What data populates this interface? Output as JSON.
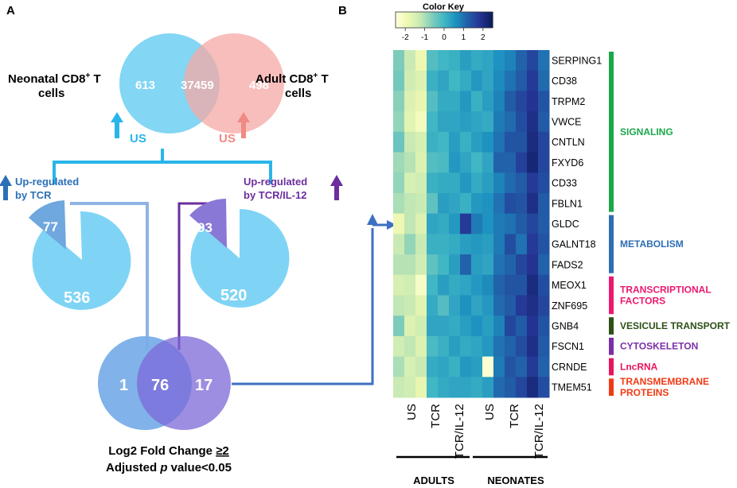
{
  "panel_a": {
    "label": "A",
    "top_venn": {
      "left_label_line1": "Neonatal CD8",
      "left_label_sup": "+",
      "left_label_suffix": " T",
      "left_label_line2": "cells",
      "right_label_line1": "Adult CD8",
      "right_label_sup": "+",
      "right_label_suffix": " T",
      "right_label_line2": "cells",
      "left_only": "613",
      "shared": "37459",
      "right_only": "498",
      "left_condition": "US",
      "right_condition": "US"
    },
    "tcr_branch": {
      "label_line1": "Up-regulated",
      "label_line2": "by TCR",
      "slice": "77",
      "rest": "536"
    },
    "il12_branch": {
      "label_line1": "Up-regulated",
      "label_line2": "by TCR/IL-12",
      "slice": "93",
      "rest": "520"
    },
    "bottom_venn": {
      "left_only": "1",
      "shared": "76",
      "right_only": "17"
    },
    "criteria_line1_prefix": "Log2 Fold Change ",
    "criteria_line1_value": "≥2",
    "criteria_line2_prefix": "Adjusted ",
    "criteria_line2_italic": "p",
    "criteria_line2_suffix": " value<0.05"
  },
  "panel_b": {
    "label": "B",
    "color_key": {
      "title": "Color Key",
      "ticks": [
        "-2",
        "-1",
        "0",
        "1",
        "2"
      ],
      "range": [
        -2.5,
        2.5
      ]
    },
    "columns": [
      "US",
      "TCR",
      "TCR/IL-12",
      "US",
      "TCR",
      "TCR/IL-12"
    ],
    "groups": [
      "ADULTS",
      "NEONATES"
    ],
    "genes": [
      "SERPING1",
      "CD38",
      "TRPM2",
      "VWCE",
      "CNTLN",
      "FXYD6",
      "CD33",
      "FBLN1",
      "GLDC",
      "GALNT18",
      "FADS2",
      "MEOX1",
      "ZNF695",
      "GNB4",
      "FSCN1",
      "CRNDE",
      "TMEM51"
    ],
    "categories": [
      {
        "lines": [
          "SIGNALING"
        ],
        "color": "#1aa74a"
      },
      {
        "lines": [
          "METABOLISM"
        ],
        "color": "#2e6db4"
      },
      {
        "lines": [
          "TRANSCRIPTIONAL",
          "FACTORS"
        ],
        "color": "#ec1870"
      },
      {
        "lines": [
          "VESICULE TRANSPORT"
        ],
        "color": "#2d5016"
      },
      {
        "lines": [
          "CYTOSKELETON"
        ],
        "color": "#7a2fa8"
      },
      {
        "lines": [
          "LncRNA"
        ],
        "color": "#e8145f"
      },
      {
        "lines": [
          "TRANSMEMBRANE",
          "PROTEINS"
        ],
        "color": "#f03a14"
      }
    ]
  },
  "chart_data": {
    "type": "heatmap",
    "title": "Color Key",
    "xlabel": "",
    "ylabel": "",
    "zlim": [
      -2.5,
      2.5
    ],
    "columns": [
      "Adults US",
      "Adults US",
      "Adults US",
      "Adults TCR",
      "Adults TCR",
      "Adults TCR/IL-12",
      "Adults TCR/IL-12",
      "Adults TCR/IL-12",
      "Neonates US",
      "Neonates US",
      "Neonates TCR",
      "Neonates TCR",
      "Neonates TCR/IL-12",
      "Neonates TCR/IL-12"
    ],
    "rows": [
      "SERPING1",
      "CD38",
      "TRPM2",
      "VWCE",
      "CNTLN",
      "FXYD6",
      "CD33",
      "FBLN1",
      "GLDC",
      "GALNT18",
      "FADS2",
      "MEOX1",
      "ZNF695",
      "GNB4",
      "FSCN1",
      "CRNDE",
      "TMEM51"
    ],
    "values": [
      [
        -0.6,
        -1.3,
        -1.9,
        -0.2,
        0.0,
        0.1,
        0.4,
        0.2,
        0.3,
        0.6,
        0.8,
        1.2,
        1.6,
        1.0
      ],
      [
        -0.5,
        -1.4,
        -1.6,
        0.1,
        0.3,
        0.0,
        0.2,
        0.5,
        0.3,
        0.7,
        1.0,
        1.3,
        1.8,
        1.1
      ],
      [
        -0.7,
        -1.6,
        -1.8,
        -0.2,
        0.2,
        0.2,
        0.5,
        0.1,
        0.4,
        0.8,
        1.3,
        1.6,
        1.9,
        1.4
      ],
      [
        -0.8,
        -1.7,
        -2.1,
        0.0,
        0.3,
        0.3,
        0.4,
        0.3,
        0.2,
        0.9,
        1.1,
        1.5,
        2.0,
        1.3
      ],
      [
        -0.4,
        -1.3,
        -1.5,
        0.1,
        0.0,
        0.4,
        0.1,
        0.4,
        0.6,
        1.0,
        1.4,
        1.4,
        2.1,
        1.6
      ],
      [
        -0.9,
        -1.1,
        -1.6,
        -0.2,
        -0.1,
        0.5,
        0.3,
        0.0,
        0.3,
        1.2,
        1.2,
        1.7,
        2.2,
        1.6
      ],
      [
        -0.8,
        -1.5,
        -1.4,
        0.1,
        0.2,
        0.2,
        0.5,
        0.2,
        0.4,
        0.8,
        1.1,
        1.3,
        1.8,
        1.5
      ],
      [
        -1.0,
        -1.2,
        -1.3,
        -0.3,
        0.4,
        0.3,
        0.1,
        0.5,
        0.6,
        1.0,
        1.5,
        1.4,
        2.0,
        1.3
      ],
      [
        -1.9,
        -1.2,
        -1.6,
        0.3,
        0.2,
        0.5,
        1.8,
        0.9,
        0.6,
        0.9,
        1.0,
        1.3,
        1.6,
        1.3
      ],
      [
        -1.3,
        -0.8,
        -1.3,
        0.1,
        0.1,
        0.2,
        0.4,
        0.5,
        0.4,
        0.9,
        1.5,
        1.0,
        1.8,
        1.4
      ],
      [
        -1.1,
        -1.1,
        -1.4,
        -0.3,
        0.0,
        0.4,
        1.2,
        0.4,
        0.3,
        1.0,
        1.2,
        1.6,
        1.9,
        1.2
      ],
      [
        -1.5,
        -1.4,
        -2.2,
        0.0,
        0.4,
        0.2,
        0.3,
        0.5,
        0.7,
        1.2,
        1.4,
        1.4,
        2.1,
        1.5
      ],
      [
        -1.2,
        -1.3,
        -1.7,
        0.2,
        -0.2,
        0.3,
        0.6,
        0.3,
        0.5,
        1.1,
        1.3,
        1.8,
        2.0,
        1.6
      ],
      [
        -0.6,
        -1.6,
        -1.4,
        0.3,
        0.3,
        0.2,
        0.4,
        0.6,
        0.4,
        0.8,
        1.6,
        1.3,
        1.9,
        1.4
      ],
      [
        -1.4,
        -1.2,
        -1.6,
        -0.1,
        0.1,
        0.4,
        0.2,
        0.3,
        0.5,
        1.0,
        1.2,
        1.5,
        2.0,
        1.3
      ],
      [
        -1.0,
        -1.5,
        -1.3,
        0.2,
        0.3,
        0.1,
        0.5,
        0.4,
        -2.4,
        0.9,
        1.4,
        1.2,
        1.8,
        1.2
      ],
      [
        -1.3,
        -1.4,
        -1.8,
        0.0,
        0.2,
        0.3,
        0.3,
        0.2,
        0.4,
        1.1,
        1.3,
        1.6,
        2.1,
        1.5
      ]
    ]
  }
}
